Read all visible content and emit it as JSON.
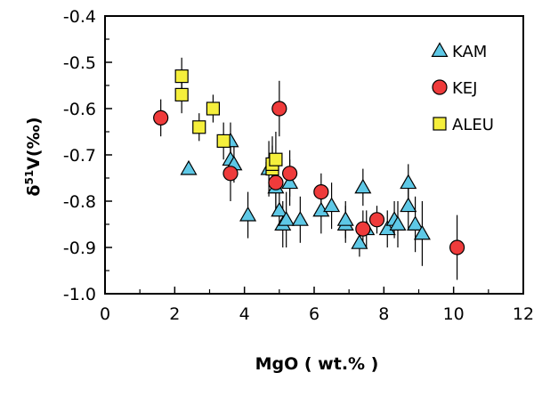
{
  "chart_data": {
    "type": "scatter",
    "title": "",
    "xlabel": "MgO ( wt.% )",
    "ylabel_main": "δ",
    "ylabel_sup": "51",
    "ylabel_rest": "V(‰)",
    "xlim": [
      0,
      12
    ],
    "ylim": [
      -1.0,
      -0.4
    ],
    "xticks": [
      "0",
      "2",
      "4",
      "6",
      "8",
      "10",
      "12"
    ],
    "yticks": [
      "-0.4",
      "-0.5",
      "-0.6",
      "-0.7",
      "-0.8",
      "-0.9",
      "-1.0"
    ],
    "grid": false,
    "legend_position": "top-right",
    "series": [
      {
        "name": "KAM",
        "marker": "triangle",
        "color": "#5ec8e6",
        "points": [
          {
            "x": 2.4,
            "y": -0.73,
            "err": 0.0
          },
          {
            "x": 3.6,
            "y": -0.67,
            "err": 0.04
          },
          {
            "x": 3.6,
            "y": -0.71,
            "err": 0.03
          },
          {
            "x": 3.7,
            "y": -0.72,
            "err": 0.04
          },
          {
            "x": 4.1,
            "y": -0.83,
            "err": 0.05
          },
          {
            "x": 4.7,
            "y": -0.73,
            "err": 0.06
          },
          {
            "x": 4.9,
            "y": -0.77,
            "err": 0.05
          },
          {
            "x": 5.0,
            "y": -0.82,
            "err": 0.04
          },
          {
            "x": 5.1,
            "y": -0.85,
            "err": 0.05
          },
          {
            "x": 5.2,
            "y": -0.84,
            "err": 0.06
          },
          {
            "x": 5.3,
            "y": -0.76,
            "err": 0.05
          },
          {
            "x": 5.6,
            "y": -0.84,
            "err": 0.05
          },
          {
            "x": 6.2,
            "y": -0.82,
            "err": 0.05
          },
          {
            "x": 6.5,
            "y": -0.81,
            "err": 0.05
          },
          {
            "x": 6.9,
            "y": -0.85,
            "err": 0.04
          },
          {
            "x": 6.9,
            "y": -0.84,
            "err": 0.04
          },
          {
            "x": 7.3,
            "y": -0.89,
            "err": 0.03
          },
          {
            "x": 7.4,
            "y": -0.77,
            "err": 0.04
          },
          {
            "x": 7.5,
            "y": -0.86,
            "err": 0.04
          },
          {
            "x": 8.1,
            "y": -0.86,
            "err": 0.04
          },
          {
            "x": 8.3,
            "y": -0.84,
            "err": 0.04
          },
          {
            "x": 8.4,
            "y": -0.85,
            "err": 0.05
          },
          {
            "x": 8.7,
            "y": -0.76,
            "err": 0.04
          },
          {
            "x": 8.7,
            "y": -0.81,
            "err": 0.05
          },
          {
            "x": 8.9,
            "y": -0.85,
            "err": 0.06
          },
          {
            "x": 9.1,
            "y": -0.87,
            "err": 0.07
          }
        ]
      },
      {
        "name": "KEJ",
        "marker": "circle",
        "color": "#ef3b3b",
        "points": [
          {
            "x": 1.6,
            "y": -0.62,
            "err": 0.04
          },
          {
            "x": 3.6,
            "y": -0.74,
            "err": 0.06
          },
          {
            "x": 4.9,
            "y": -0.76,
            "err": 0.06
          },
          {
            "x": 5.0,
            "y": -0.6,
            "err": 0.06
          },
          {
            "x": 5.3,
            "y": -0.74,
            "err": 0.05
          },
          {
            "x": 6.2,
            "y": -0.78,
            "err": 0.04
          },
          {
            "x": 7.4,
            "y": -0.86,
            "err": 0.04
          },
          {
            "x": 7.8,
            "y": -0.84,
            "err": 0.03
          },
          {
            "x": 10.1,
            "y": -0.9,
            "err": 0.07
          }
        ]
      },
      {
        "name": "ALEU",
        "marker": "square",
        "color": "#f5ef3c",
        "points": [
          {
            "x": 2.2,
            "y": -0.53,
            "err": 0.04
          },
          {
            "x": 2.2,
            "y": -0.57,
            "err": 0.04
          },
          {
            "x": 2.7,
            "y": -0.64,
            "err": 0.03
          },
          {
            "x": 3.1,
            "y": -0.6,
            "err": 0.03
          },
          {
            "x": 3.4,
            "y": -0.67,
            "err": 0.04
          },
          {
            "x": 4.8,
            "y": -0.73,
            "err": 0.05
          },
          {
            "x": 4.8,
            "y": -0.72,
            "err": 0.06
          },
          {
            "x": 4.9,
            "y": -0.71,
            "err": 0.06
          }
        ]
      }
    ]
  }
}
